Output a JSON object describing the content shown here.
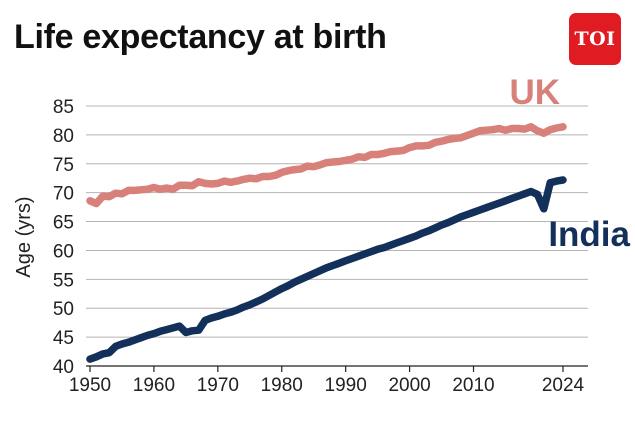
{
  "header": {
    "title": "Life expectancy at birth",
    "logo_text": "TOI"
  },
  "colors": {
    "logo_bg": "#e01b22",
    "uk": "#d8807a",
    "india": "#12305a",
    "grid": "#b4b4b4"
  },
  "chart_data": {
    "type": "line",
    "title": "Life expectancy at birth",
    "xlabel": "",
    "ylabel": "Age (yrs)",
    "xlim": [
      1950,
      2024
    ],
    "ylim": [
      40,
      85
    ],
    "x_ticks": [
      1950,
      1960,
      1970,
      1980,
      1990,
      2000,
      2010,
      2024
    ],
    "y_ticks": [
      40,
      45,
      50,
      55,
      60,
      65,
      70,
      75,
      80,
      85
    ],
    "grid": true,
    "legend": "direct labels at right",
    "series": [
      {
        "name": "UK",
        "color": "#d8807a",
        "points": [
          [
            1950,
            68.6
          ],
          [
            1951,
            68.1
          ],
          [
            1952,
            69.4
          ],
          [
            1953,
            69.3
          ],
          [
            1954,
            69.9
          ],
          [
            1955,
            69.8
          ],
          [
            1956,
            70.4
          ],
          [
            1957,
            70.4
          ],
          [
            1958,
            70.5
          ],
          [
            1959,
            70.6
          ],
          [
            1960,
            70.9
          ],
          [
            1961,
            70.6
          ],
          [
            1962,
            70.8
          ],
          [
            1963,
            70.6
          ],
          [
            1964,
            71.3
          ],
          [
            1965,
            71.3
          ],
          [
            1966,
            71.2
          ],
          [
            1967,
            71.9
          ],
          [
            1968,
            71.6
          ],
          [
            1969,
            71.5
          ],
          [
            1970,
            71.6
          ],
          [
            1971,
            72.0
          ],
          [
            1972,
            71.8
          ],
          [
            1973,
            72.0
          ],
          [
            1974,
            72.3
          ],
          [
            1975,
            72.5
          ],
          [
            1976,
            72.4
          ],
          [
            1977,
            72.8
          ],
          [
            1978,
            72.8
          ],
          [
            1979,
            73.0
          ],
          [
            1980,
            73.5
          ],
          [
            1981,
            73.8
          ],
          [
            1982,
            74.0
          ],
          [
            1983,
            74.1
          ],
          [
            1984,
            74.6
          ],
          [
            1985,
            74.5
          ],
          [
            1986,
            74.8
          ],
          [
            1987,
            75.2
          ],
          [
            1988,
            75.3
          ],
          [
            1989,
            75.4
          ],
          [
            1990,
            75.6
          ],
          [
            1991,
            75.8
          ],
          [
            1992,
            76.2
          ],
          [
            1993,
            76.1
          ],
          [
            1994,
            76.6
          ],
          [
            1995,
            76.6
          ],
          [
            1996,
            76.8
          ],
          [
            1997,
            77.1
          ],
          [
            1998,
            77.2
          ],
          [
            1999,
            77.3
          ],
          [
            2000,
            77.8
          ],
          [
            2001,
            78.1
          ],
          [
            2002,
            78.1
          ],
          [
            2003,
            78.2
          ],
          [
            2004,
            78.7
          ],
          [
            2005,
            78.9
          ],
          [
            2006,
            79.2
          ],
          [
            2007,
            79.4
          ],
          [
            2008,
            79.5
          ],
          [
            2009,
            79.9
          ],
          [
            2010,
            80.3
          ],
          [
            2011,
            80.7
          ],
          [
            2012,
            80.8
          ],
          [
            2013,
            80.9
          ],
          [
            2014,
            81.1
          ],
          [
            2015,
            80.8
          ],
          [
            2016,
            81.1
          ],
          [
            2017,
            81.1
          ],
          [
            2018,
            81.0
          ],
          [
            2019,
            81.4
          ],
          [
            2020,
            80.7
          ],
          [
            2021,
            80.3
          ],
          [
            2022,
            80.9
          ],
          [
            2023,
            81.2
          ],
          [
            2024,
            81.4
          ]
        ]
      },
      {
        "name": "India",
        "color": "#12305a",
        "points": [
          [
            1950,
            41.2
          ],
          [
            1951,
            41.6
          ],
          [
            1952,
            42.1
          ],
          [
            1953,
            42.3
          ],
          [
            1954,
            43.4
          ],
          [
            1955,
            43.8
          ],
          [
            1956,
            44.1
          ],
          [
            1957,
            44.5
          ],
          [
            1958,
            44.9
          ],
          [
            1959,
            45.3
          ],
          [
            1960,
            45.6
          ],
          [
            1961,
            46.0
          ],
          [
            1962,
            46.3
          ],
          [
            1963,
            46.6
          ],
          [
            1964,
            46.9
          ],
          [
            1965,
            45.8
          ],
          [
            1966,
            46.1
          ],
          [
            1967,
            46.2
          ],
          [
            1968,
            47.9
          ],
          [
            1969,
            48.3
          ],
          [
            1970,
            48.6
          ],
          [
            1971,
            49.0
          ],
          [
            1972,
            49.3
          ],
          [
            1973,
            49.7
          ],
          [
            1974,
            50.2
          ],
          [
            1975,
            50.6
          ],
          [
            1976,
            51.1
          ],
          [
            1977,
            51.6
          ],
          [
            1978,
            52.2
          ],
          [
            1979,
            52.8
          ],
          [
            1980,
            53.4
          ],
          [
            1981,
            53.9
          ],
          [
            1982,
            54.5
          ],
          [
            1983,
            55.0
          ],
          [
            1984,
            55.5
          ],
          [
            1985,
            56.0
          ],
          [
            1986,
            56.5
          ],
          [
            1987,
            57.0
          ],
          [
            1988,
            57.4
          ],
          [
            1989,
            57.8
          ],
          [
            1990,
            58.2
          ],
          [
            1991,
            58.6
          ],
          [
            1992,
            59.0
          ],
          [
            1993,
            59.4
          ],
          [
            1994,
            59.8
          ],
          [
            1995,
            60.2
          ],
          [
            1996,
            60.5
          ],
          [
            1997,
            60.9
          ],
          [
            1998,
            61.3
          ],
          [
            1999,
            61.7
          ],
          [
            2000,
            62.1
          ],
          [
            2001,
            62.5
          ],
          [
            2002,
            63.0
          ],
          [
            2003,
            63.4
          ],
          [
            2004,
            63.9
          ],
          [
            2005,
            64.4
          ],
          [
            2006,
            64.8
          ],
          [
            2007,
            65.3
          ],
          [
            2008,
            65.8
          ],
          [
            2009,
            66.2
          ],
          [
            2010,
            66.6
          ],
          [
            2011,
            67.0
          ],
          [
            2012,
            67.4
          ],
          [
            2013,
            67.8
          ],
          [
            2014,
            68.2
          ],
          [
            2015,
            68.6
          ],
          [
            2016,
            69.0
          ],
          [
            2017,
            69.4
          ],
          [
            2018,
            69.8
          ],
          [
            2019,
            70.2
          ],
          [
            2020,
            69.7
          ],
          [
            2021,
            67.2
          ],
          [
            2022,
            71.7
          ],
          [
            2023,
            72.0
          ],
          [
            2024,
            72.2
          ]
        ]
      }
    ]
  }
}
